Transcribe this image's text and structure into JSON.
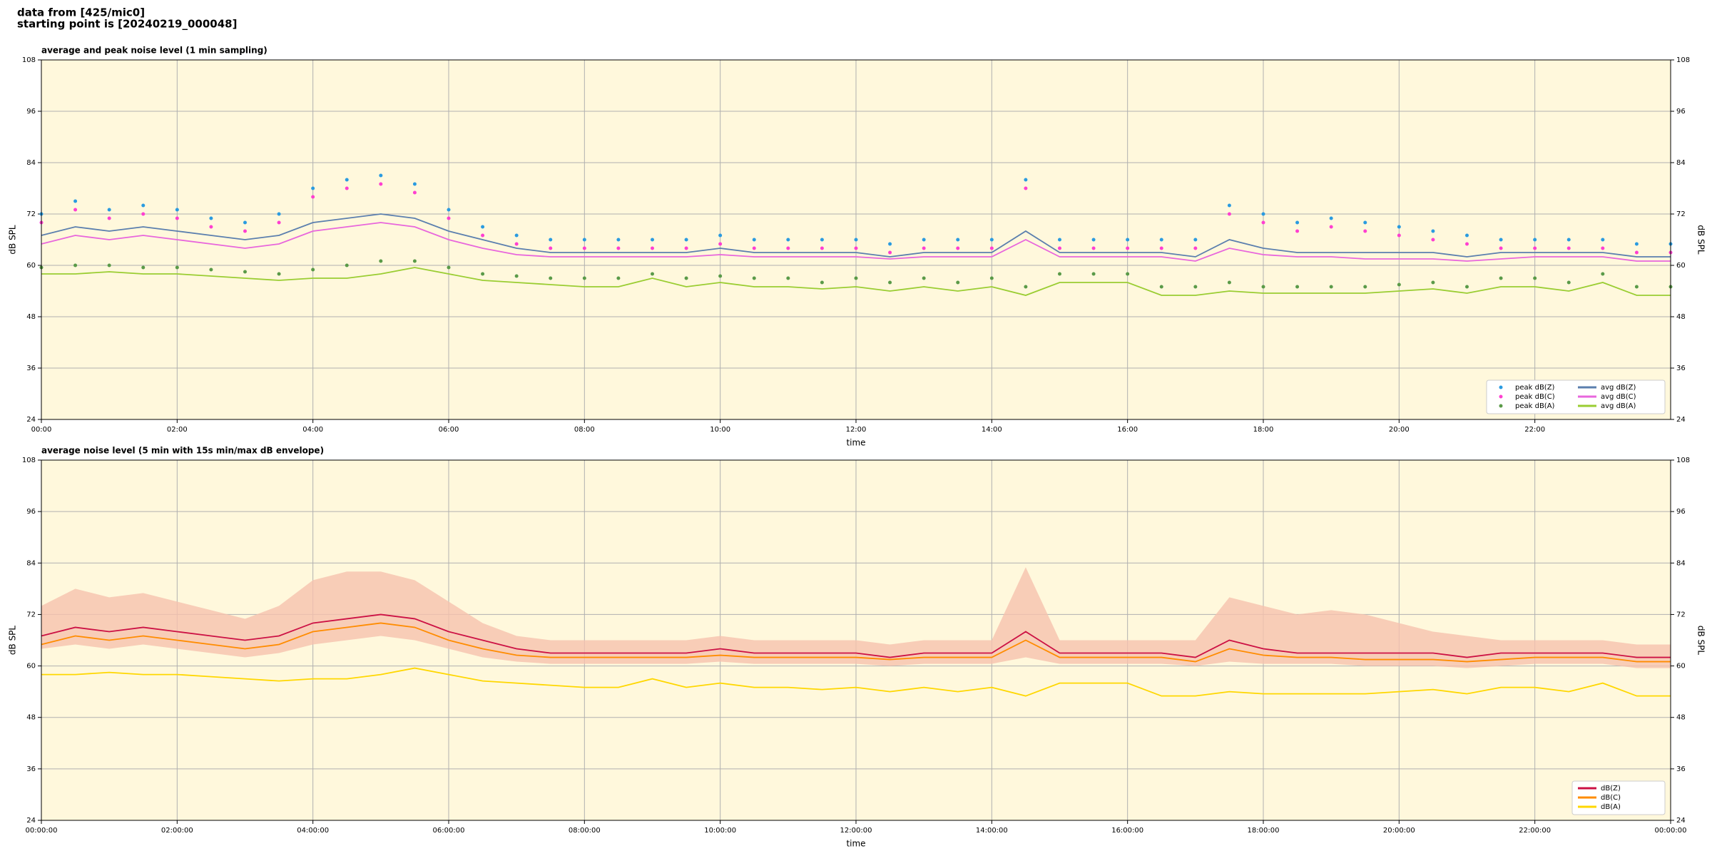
{
  "header": {
    "lines": [
      "data from [425/mic0]",
      "starting point is [20240219_000048]"
    ]
  },
  "chart_data": [
    {
      "type": "line",
      "title": "average and peak noise level (1 min sampling)",
      "xlabel": "time",
      "ylabel": "dB SPL",
      "xlim": [
        0,
        24
      ],
      "ylim": [
        24,
        108
      ],
      "yticks": [
        24,
        36,
        48,
        60,
        72,
        84,
        96,
        108
      ],
      "xticks": [
        {
          "value": 0,
          "label": "00:00"
        },
        {
          "value": 2,
          "label": "02:00"
        },
        {
          "value": 4,
          "label": "04:00"
        },
        {
          "value": 6,
          "label": "06:00"
        },
        {
          "value": 8,
          "label": "08:00"
        },
        {
          "value": 10,
          "label": "10:00"
        },
        {
          "value": 12,
          "label": "12:00"
        },
        {
          "value": 14,
          "label": "14:00"
        },
        {
          "value": 16,
          "label": "16:00"
        },
        {
          "value": 18,
          "label": "18:00"
        },
        {
          "value": 20,
          "label": "20:00"
        },
        {
          "value": 22,
          "label": "22:00"
        }
      ],
      "grid": true,
      "legend": "lower right",
      "legend_columns": 2,
      "x": [
        0,
        0.5,
        1,
        1.5,
        2,
        2.5,
        3,
        3.5,
        4,
        4.5,
        5,
        5.5,
        6,
        6.5,
        7,
        7.5,
        8,
        8.5,
        9,
        9.5,
        10,
        10.5,
        11,
        11.5,
        12,
        12.5,
        13,
        13.5,
        14,
        14.5,
        15,
        15.5,
        16,
        16.5,
        17,
        17.5,
        18,
        18.5,
        19,
        19.5,
        20,
        20.5,
        21,
        21.5,
        22,
        22.5,
        23,
        23.5,
        24
      ],
      "series": [
        {
          "name": "peak dB(Z)",
          "type": "scatter",
          "color": "#2a9be0",
          "values": [
            72,
            75,
            73,
            74,
            73,
            71,
            70,
            72,
            78,
            80,
            81,
            79,
            73,
            69,
            67,
            66,
            66,
            66,
            66,
            66,
            67,
            66,
            66,
            66,
            66,
            65,
            66,
            66,
            66,
            80,
            66,
            66,
            66,
            66,
            66,
            74,
            72,
            70,
            71,
            70,
            69,
            68,
            67,
            66,
            66,
            66,
            66,
            65,
            65
          ]
        },
        {
          "name": "peak dB(C)",
          "type": "scatter",
          "color": "#ff3fd0",
          "values": [
            70,
            73,
            71,
            72,
            71,
            69,
            68,
            70,
            76,
            78,
            79,
            77,
            71,
            67,
            65,
            64,
            64,
            64,
            64,
            64,
            65,
            64,
            64,
            64,
            64,
            63,
            64,
            64,
            64,
            78,
            64,
            64,
            64,
            64,
            64,
            72,
            70,
            68,
            69,
            68,
            67,
            66,
            65,
            64,
            64,
            64,
            64,
            63,
            63
          ]
        },
        {
          "name": "peak dB(A)",
          "type": "scatter",
          "color": "#5a9a48",
          "values": [
            59.5,
            60,
            60,
            59.5,
            59.5,
            59,
            58.5,
            58,
            59,
            60,
            61,
            61,
            59.5,
            58,
            57.5,
            57,
            57,
            57,
            58,
            57,
            57.5,
            57,
            57,
            56,
            57,
            56,
            57,
            56,
            57,
            55,
            58,
            58,
            58,
            55,
            55,
            56,
            55,
            55,
            55,
            55,
            55.5,
            56,
            55,
            57,
            57,
            56,
            58,
            55,
            55
          ]
        },
        {
          "name": "avg dB(Z)",
          "type": "line",
          "color": "#5b7fae",
          "values": [
            67,
            69,
            68,
            69,
            68,
            67,
            66,
            67,
            70,
            71,
            72,
            71,
            68,
            66,
            64,
            63,
            63,
            63,
            63,
            63,
            64,
            63,
            63,
            63,
            63,
            62,
            63,
            63,
            63,
            68,
            63,
            63,
            63,
            63,
            62,
            66,
            64,
            63,
            63,
            63,
            63,
            63,
            62,
            63,
            63,
            63,
            63,
            62,
            62
          ]
        },
        {
          "name": "avg dB(C)",
          "type": "line",
          "color": "#e866dc",
          "values": [
            65,
            67,
            66,
            67,
            66,
            65,
            64,
            65,
            68,
            69,
            70,
            69,
            66,
            64,
            62.5,
            62,
            62,
            62,
            62,
            62,
            62.5,
            62,
            62,
            62,
            62,
            61.5,
            62,
            62,
            62,
            66,
            62,
            62,
            62,
            62,
            61,
            64,
            62.5,
            62,
            62,
            61.5,
            61.5,
            61.5,
            61,
            61.5,
            62,
            62,
            62,
            61,
            61
          ]
        },
        {
          "name": "avg dB(A)",
          "type": "line",
          "color": "#9acd32",
          "values": [
            58,
            58,
            58.5,
            58,
            58,
            57.5,
            57,
            56.5,
            57,
            57,
            58,
            59.5,
            58,
            56.5,
            56,
            55.5,
            55,
            55,
            57,
            55,
            56,
            55,
            55,
            54.5,
            55,
            54,
            55,
            54,
            55,
            53,
            56,
            56,
            56,
            53,
            53,
            54,
            53.5,
            53.5,
            53.5,
            53.5,
            54,
            54.5,
            53.5,
            55,
            55,
            54,
            56,
            53,
            53
          ]
        }
      ]
    },
    {
      "type": "line",
      "title": "average noise level (5 min with 15s min/max dB envelope)",
      "xlabel": "time",
      "ylabel": "dB SPL",
      "xlim": [
        0,
        24
      ],
      "ylim": [
        24,
        108
      ],
      "yticks": [
        24,
        36,
        48,
        60,
        72,
        84,
        96,
        108
      ],
      "xticks": [
        {
          "value": 0,
          "label": "00:00:00"
        },
        {
          "value": 2,
          "label": "02:00:00"
        },
        {
          "value": 4,
          "label": "04:00:00"
        },
        {
          "value": 6,
          "label": "06:00:00"
        },
        {
          "value": 8,
          "label": "08:00:00"
        },
        {
          "value": 10,
          "label": "10:00:00"
        },
        {
          "value": 12,
          "label": "12:00:00"
        },
        {
          "value": 14,
          "label": "14:00:00"
        },
        {
          "value": 16,
          "label": "16:00:00"
        },
        {
          "value": 18,
          "label": "18:00:00"
        },
        {
          "value": 20,
          "label": "20:00:00"
        },
        {
          "value": 22,
          "label": "22:00:00"
        },
        {
          "value": 24,
          "label": "00:00:00"
        }
      ],
      "grid": true,
      "legend": "lower right",
      "legend_columns": 1,
      "x": [
        0,
        0.5,
        1,
        1.5,
        2,
        2.5,
        3,
        3.5,
        4,
        4.5,
        5,
        5.5,
        6,
        6.5,
        7,
        7.5,
        8,
        8.5,
        9,
        9.5,
        10,
        10.5,
        11,
        11.5,
        12,
        12.5,
        13,
        13.5,
        14,
        14.5,
        15,
        15.5,
        16,
        16.5,
        17,
        17.5,
        18,
        18.5,
        19,
        19.5,
        20,
        20.5,
        21,
        21.5,
        22,
        22.5,
        23,
        23.5,
        24
      ],
      "envelope": {
        "color": "#f6c2ae",
        "max": [
          74,
          78,
          76,
          77,
          75,
          73,
          71,
          74,
          80,
          82,
          82,
          80,
          75,
          70,
          67,
          66,
          66,
          66,
          66,
          66,
          67,
          66,
          66,
          66,
          66,
          65,
          66,
          66,
          66,
          83,
          66,
          66,
          66,
          66,
          66,
          76,
          74,
          72,
          73,
          72,
          70,
          68,
          67,
          66,
          66,
          66,
          66,
          65,
          65
        ],
        "min": [
          64,
          65,
          64,
          65,
          64,
          63,
          62,
          63,
          65,
          66,
          67,
          66,
          64,
          62,
          61,
          60.5,
          60.5,
          60.5,
          60.5,
          60.5,
          61,
          60.5,
          60.5,
          60.5,
          60.5,
          60,
          60.5,
          60.5,
          60.5,
          62,
          60.5,
          60.5,
          60.5,
          60.5,
          60,
          61,
          60.5,
          60.5,
          60.5,
          60,
          60,
          60,
          59.5,
          60,
          60.5,
          60.5,
          60.5,
          59.5,
          59.5
        ]
      },
      "series": [
        {
          "name": "dB(Z)",
          "type": "line",
          "color": "#cc1144",
          "values": [
            67,
            69,
            68,
            69,
            68,
            67,
            66,
            67,
            70,
            71,
            72,
            71,
            68,
            66,
            64,
            63,
            63,
            63,
            63,
            63,
            64,
            63,
            63,
            63,
            63,
            62,
            63,
            63,
            63,
            68,
            63,
            63,
            63,
            63,
            62,
            66,
            64,
            63,
            63,
            63,
            63,
            63,
            62,
            63,
            63,
            63,
            63,
            62,
            62
          ]
        },
        {
          "name": "dB(C)",
          "type": "line",
          "color": "#ff8c00",
          "values": [
            65,
            67,
            66,
            67,
            66,
            65,
            64,
            65,
            68,
            69,
            70,
            69,
            66,
            64,
            62.5,
            62,
            62,
            62,
            62,
            62,
            62.5,
            62,
            62,
            62,
            62,
            61.5,
            62,
            62,
            62,
            66,
            62,
            62,
            62,
            62,
            61,
            64,
            62.5,
            62,
            62,
            61.5,
            61.5,
            61.5,
            61,
            61.5,
            62,
            62,
            62,
            61,
            61
          ]
        },
        {
          "name": "dB(A)",
          "type": "line",
          "color": "#ffd700",
          "values": [
            58,
            58,
            58.5,
            58,
            58,
            57.5,
            57,
            56.5,
            57,
            57,
            58,
            59.5,
            58,
            56.5,
            56,
            55.5,
            55,
            55,
            57,
            55,
            56,
            55,
            55,
            54.5,
            55,
            54,
            55,
            54,
            55,
            53,
            56,
            56,
            56,
            53,
            53,
            54,
            53.5,
            53.5,
            53.5,
            53.5,
            54,
            54.5,
            53.5,
            55,
            55,
            54,
            56,
            53,
            53
          ]
        }
      ]
    }
  ]
}
